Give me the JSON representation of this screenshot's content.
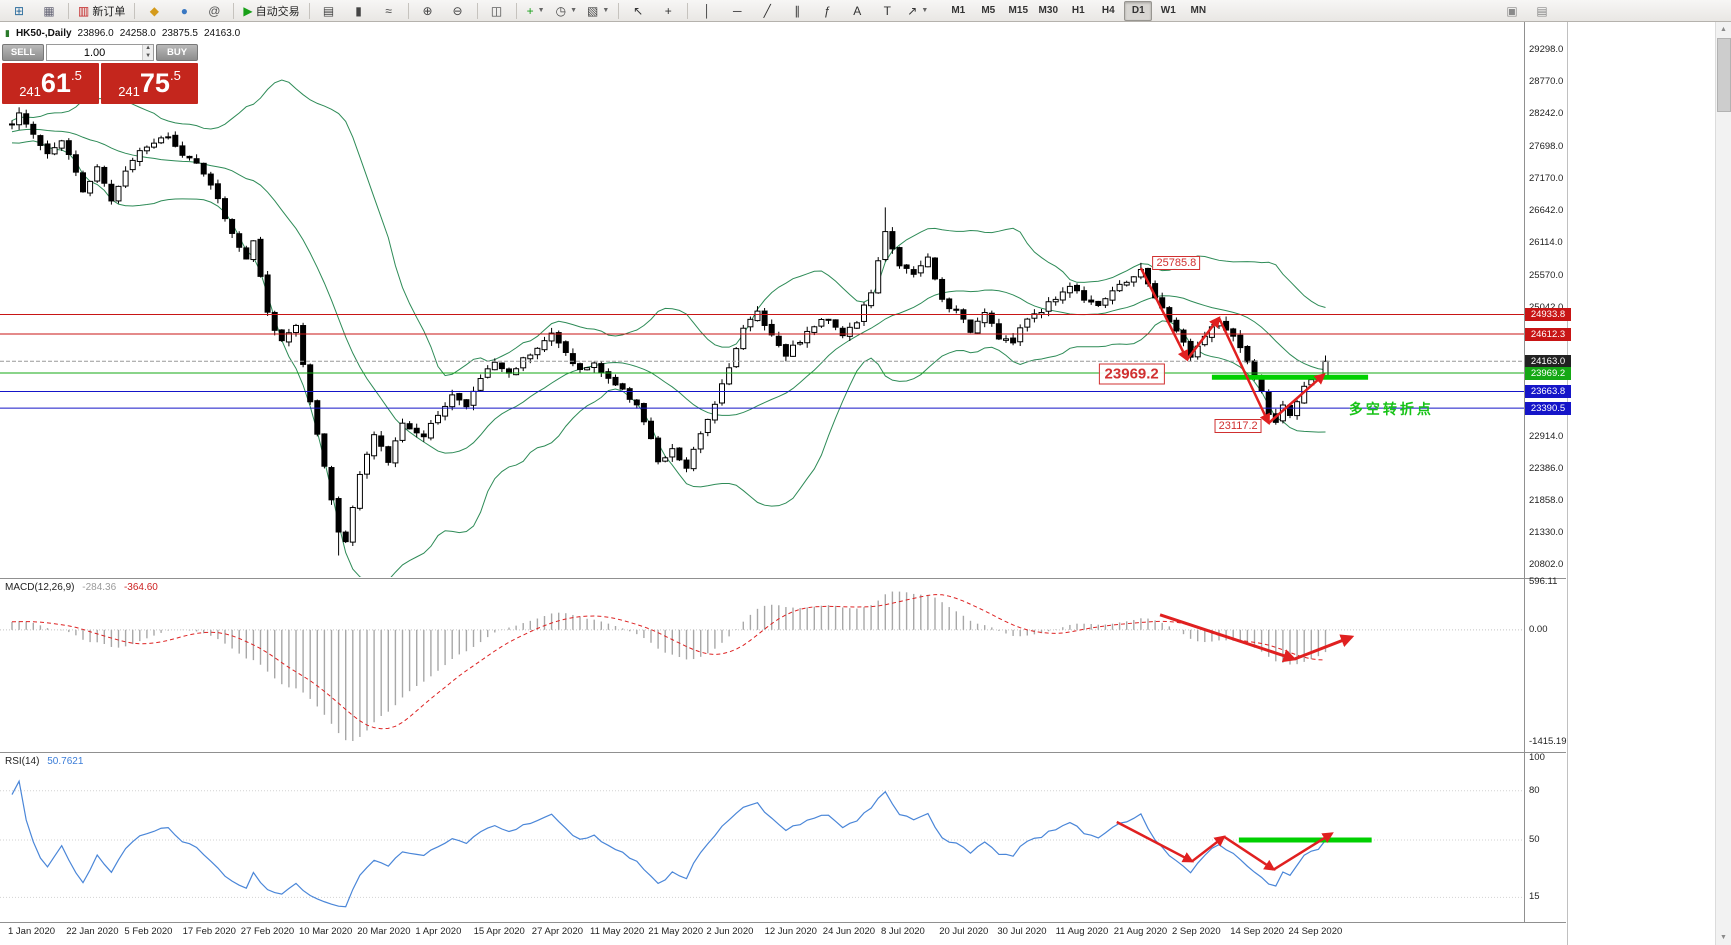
{
  "colors": {
    "accent_red": "#c81515",
    "accent_green": "#15a815",
    "accent_blue": "#1515c8",
    "panel_red": "#c4261d",
    "lime": "#00d000",
    "bollinger": "#2e8b57",
    "rsi_line": "#4a86d8",
    "macd_signal": "#dd2222",
    "macd_hist": "#a8a8a8",
    "arrow_red": "#e02020"
  },
  "toolbar": {
    "groups": [
      {
        "items": [
          {
            "name": "new-chart",
            "glyph": "⊞",
            "color": "#2e6e9e"
          },
          {
            "name": "chart-profiles",
            "glyph": "▦",
            "color": "#667"
          }
        ]
      },
      {
        "items": [
          {
            "name": "new-order",
            "glyph": "▥",
            "color": "#c22020",
            "label": "新订单"
          }
        ]
      },
      {
        "items": [
          {
            "name": "market",
            "glyph": "◆",
            "color": "#d49a1a"
          },
          {
            "name": "community",
            "glyph": "●",
            "color": "#3a78c2"
          },
          {
            "name": "search",
            "glyph": "@",
            "color": "#555"
          }
        ]
      },
      {
        "items": [
          {
            "name": "autotrading",
            "glyph": "▶",
            "color": "#18a018",
            "label": "自动交易"
          }
        ]
      },
      {
        "items": [
          {
            "name": "bar-chart",
            "glyph": "▤",
            "color": "#444"
          },
          {
            "name": "candlestick-chart",
            "glyph": "▮",
            "color": "#444"
          },
          {
            "name": "line-chart",
            "glyph": "≈",
            "color": "#444"
          }
        ]
      },
      {
        "items": [
          {
            "name": "zoom-in",
            "glyph": "⊕",
            "color": "#444"
          },
          {
            "name": "zoom-out",
            "glyph": "⊖",
            "color": "#444"
          }
        ]
      },
      {
        "items": [
          {
            "name": "tile-windows",
            "glyph": "◫",
            "color": "#444"
          }
        ]
      },
      {
        "items": [
          {
            "name": "indicators",
            "glyph": "+",
            "color": "#18a018",
            "dd": true
          },
          {
            "name": "periods",
            "glyph": "◷",
            "color": "#444",
            "dd": true
          },
          {
            "name": "templates",
            "glyph": "▧",
            "color": "#444",
            "dd": true
          }
        ]
      },
      {
        "items": [
          {
            "name": "cursor",
            "glyph": "↖",
            "color": "#333"
          },
          {
            "name": "crosshair",
            "glyph": "+",
            "color": "#333"
          }
        ]
      },
      {
        "items": [
          {
            "name": "vertical-line",
            "glyph": "│",
            "color": "#333"
          },
          {
            "name": "horizontal-line",
            "glyph": "─",
            "color": "#333"
          },
          {
            "name": "trendline",
            "glyph": "╱",
            "color": "#333"
          },
          {
            "name": "equidistant-channel",
            "glyph": "∥",
            "color": "#333"
          },
          {
            "name": "fibonacci",
            "glyph": "ƒ",
            "color": "#333"
          },
          {
            "name": "text",
            "glyph": "A",
            "color": "#333"
          },
          {
            "name": "text-label",
            "glyph": "T",
            "color": "#333"
          },
          {
            "name": "arrows-tool",
            "glyph": "↗",
            "color": "#333",
            "dd": true
          }
        ]
      }
    ],
    "timeframes": [
      {
        "label": "M1"
      },
      {
        "label": "M5"
      },
      {
        "label": "M15"
      },
      {
        "label": "M30"
      },
      {
        "label": "H1"
      },
      {
        "label": "H4"
      },
      {
        "label": "D1",
        "active": true
      },
      {
        "label": "W1"
      },
      {
        "label": "MN"
      }
    ],
    "right_icons": [
      {
        "name": "docked-panel",
        "glyph": "▣",
        "color": "#8a8a8a"
      },
      {
        "name": "help-panel",
        "glyph": "▤",
        "color": "#8a8a8a"
      }
    ]
  },
  "chart": {
    "title": "HK50-,Daily",
    "open": "23896.0",
    "high": "24258.0",
    "low": "23875.5",
    "close": "24163.0"
  },
  "trade_panel": {
    "sell_label": "SELL",
    "buy_label": "BUY",
    "volume": "1.00",
    "sell_price": "24161.5",
    "buy_price": "24175.5",
    "sell_prefix": "241",
    "sell_big": "61",
    "sell_sup": ".5",
    "buy_prefix": "241",
    "buy_big": "75",
    "buy_sup": ".5"
  },
  "chart_data": {
    "type": "candlestick",
    "symbol": "HK50",
    "timeframe": "Daily",
    "bars": 186,
    "ranges": {
      "main": [
        20622,
        29691
      ],
      "macd": [
        -1501,
        615
      ],
      "rsi": [
        0,
        100
      ]
    },
    "y_axis_ticks": [
      "29298.0",
      "28770.0",
      "28242.0",
      "27698.0",
      "27170.0",
      "26642.0",
      "26114.0",
      "25570.0",
      "25042.0",
      "22914.0",
      "22386.0",
      "21858.0",
      "21330.0",
      "20802.0"
    ],
    "price_lines": [
      {
        "price": 24933.8,
        "label": "24933.8",
        "color": "#c81515"
      },
      {
        "price": 24612.3,
        "label": "24612.3",
        "color": "#c81515"
      },
      {
        "price": 24163.0,
        "label": "24163.0",
        "color": "#222222",
        "style": "current"
      },
      {
        "price": 23969.2,
        "label": "23969.2",
        "color": "#15a815"
      },
      {
        "price": 23663.8,
        "label": "23663.8",
        "color": "#1515c8"
      },
      {
        "price": 23390.5,
        "label": "23390.5",
        "color": "#1515c8"
      }
    ],
    "x_labels": [
      "1 Jan 2020",
      "22 Jan 2020",
      "5 Feb 2020",
      "17 Feb 2020",
      "27 Feb 2020",
      "10 Mar 2020",
      "20 Mar 2020",
      "1 Apr 2020",
      "15 Apr 2020",
      "27 Apr 2020",
      "11 May 2020",
      "21 May 2020",
      "2 Jun 2020",
      "12 Jun 2020",
      "24 Jun 2020",
      "8 Jul 2020",
      "20 Jul 2020",
      "30 Jul 2020",
      "11 Aug 2020",
      "21 Aug 2020",
      "2 Sep 2020",
      "14 Sep 2020",
      "24 Sep 2020"
    ],
    "price_anchors": [
      [
        0,
        28100
      ],
      [
        1,
        28280
      ],
      [
        3,
        27900
      ],
      [
        5,
        27580
      ],
      [
        7,
        27800
      ],
      [
        8,
        27540
      ],
      [
        10,
        26940
      ],
      [
        12,
        27400
      ],
      [
        14,
        26840
      ],
      [
        16,
        27320
      ],
      [
        18,
        27660
      ],
      [
        20,
        27790
      ],
      [
        22,
        27860
      ],
      [
        24,
        27550
      ],
      [
        26,
        27470
      ],
      [
        28,
        27090
      ],
      [
        30,
        26540
      ],
      [
        32,
        26040
      ],
      [
        33,
        25840
      ],
      [
        34,
        26140
      ],
      [
        36,
        24940
      ],
      [
        38,
        24470
      ],
      [
        40,
        24770
      ],
      [
        42,
        23470
      ],
      [
        44,
        22390
      ],
      [
        46,
        21340
      ],
      [
        47,
        21190
      ],
      [
        49,
        22340
      ],
      [
        51,
        22940
      ],
      [
        53,
        22510
      ],
      [
        55,
        23170
      ],
      [
        58,
        22890
      ],
      [
        60,
        23310
      ],
      [
        62,
        23610
      ],
      [
        64,
        23410
      ],
      [
        66,
        23890
      ],
      [
        68,
        24150
      ],
      [
        70,
        23950
      ],
      [
        72,
        24200
      ],
      [
        74,
        24410
      ],
      [
        76,
        24610
      ],
      [
        78,
        24300
      ],
      [
        80,
        24010
      ],
      [
        82,
        24110
      ],
      [
        84,
        23890
      ],
      [
        86,
        23670
      ],
      [
        88,
        23470
      ],
      [
        90,
        22870
      ],
      [
        91,
        22470
      ],
      [
        93,
        22690
      ],
      [
        95,
        22410
      ],
      [
        97,
        22940
      ],
      [
        99,
        23490
      ],
      [
        101,
        24090
      ],
      [
        103,
        24690
      ],
      [
        105,
        24990
      ],
      [
        107,
        24590
      ],
      [
        109,
        24290
      ],
      [
        111,
        24510
      ],
      [
        113,
        24750
      ],
      [
        115,
        24890
      ],
      [
        117,
        24610
      ],
      [
        119,
        24810
      ],
      [
        121,
        25310
      ],
      [
        123,
        26270
      ],
      [
        124,
        26040
      ],
      [
        125,
        25770
      ],
      [
        127,
        25570
      ],
      [
        129,
        25870
      ],
      [
        131,
        25170
      ],
      [
        133,
        24970
      ],
      [
        135,
        24670
      ],
      [
        137,
        25010
      ],
      [
        139,
        24570
      ],
      [
        141,
        24470
      ],
      [
        143,
        24870
      ],
      [
        145,
        25010
      ],
      [
        147,
        25210
      ],
      [
        149,
        25410
      ],
      [
        151,
        25210
      ],
      [
        153,
        25110
      ],
      [
        155,
        25310
      ],
      [
        157,
        25470
      ],
      [
        159,
        25690
      ],
      [
        160,
        25410
      ],
      [
        162,
        25010
      ],
      [
        164,
        24670
      ],
      [
        166,
        24250
      ],
      [
        168,
        24570
      ],
      [
        170,
        24830
      ],
      [
        172,
        24550
      ],
      [
        174,
        24140
      ],
      [
        176,
        23640
      ],
      [
        177,
        23310
      ],
      [
        178,
        23170
      ],
      [
        179,
        23410
      ],
      [
        180,
        23270
      ],
      [
        181,
        23510
      ],
      [
        182,
        23710
      ],
      [
        183,
        23850
      ],
      [
        184,
        23890
      ],
      [
        185,
        24163
      ]
    ],
    "pinned": {
      "first_high_bar": 1,
      "first_high": 28350,
      "crash_low_bar": 46,
      "crash_low": 20960,
      "july_high_bar": 123,
      "july_high": 26700,
      "high_bar": 159,
      "high": 25785.8,
      "low_bar": 178,
      "low": 23117.2
    },
    "last_candle": {
      "open": 23896.0,
      "high": 24258.0,
      "low": 23875.5,
      "close": 24163.0
    },
    "indicators": {
      "bollinger": {
        "period": 20,
        "deviation": 2,
        "color": "#2e8b57"
      },
      "macd": {
        "label": "MACD(12,26,9)",
        "values": [
          "-284.36",
          "-364.60"
        ],
        "axis": [
          "596.11",
          "0.00",
          "-1415.19"
        ]
      },
      "rsi": {
        "label": "RSI(14)",
        "value": "50.7621",
        "axis": [
          "100",
          "80",
          "50",
          "15"
        ],
        "levels": [
          80,
          50,
          15
        ]
      }
    },
    "annotations": {
      "main_labels": [
        {
          "text": "25785.8",
          "bar": 164,
          "price": 25790
        },
        {
          "text": "23969.2",
          "bar": 157.7,
          "price": 23960,
          "size": "large"
        },
        {
          "text": "23117.2",
          "bar": 172.7,
          "price": 23090
        }
      ],
      "turning_point_text": {
        "text": "多空转折点",
        "bar": 188.3,
        "price": 23400,
        "color": "#17c317"
      },
      "main_arrows": [
        [
          159,
          25700
        ],
        [
          165.5,
          24191
        ],
        [
          170,
          24878
        ],
        [
          177,
          23143
        ],
        [
          184.8,
          23945
        ]
      ],
      "green_segment_main": {
        "bar1": 169,
        "bar2": 191,
        "price": 23900
      },
      "macd_arrows": [
        [
          161.7,
          189
        ],
        [
          180.6,
          -369
        ],
        [
          188.7,
          -88
        ]
      ],
      "rsi_arrows": [
        [
          155.6,
          61
        ],
        [
          166.2,
          37
        ],
        [
          170.7,
          52
        ],
        [
          177.7,
          32
        ],
        [
          185.9,
          54
        ]
      ],
      "green_segment_rsi": {
        "bar1": 172.8,
        "bar2": 191.5,
        "value": 50
      }
    }
  }
}
